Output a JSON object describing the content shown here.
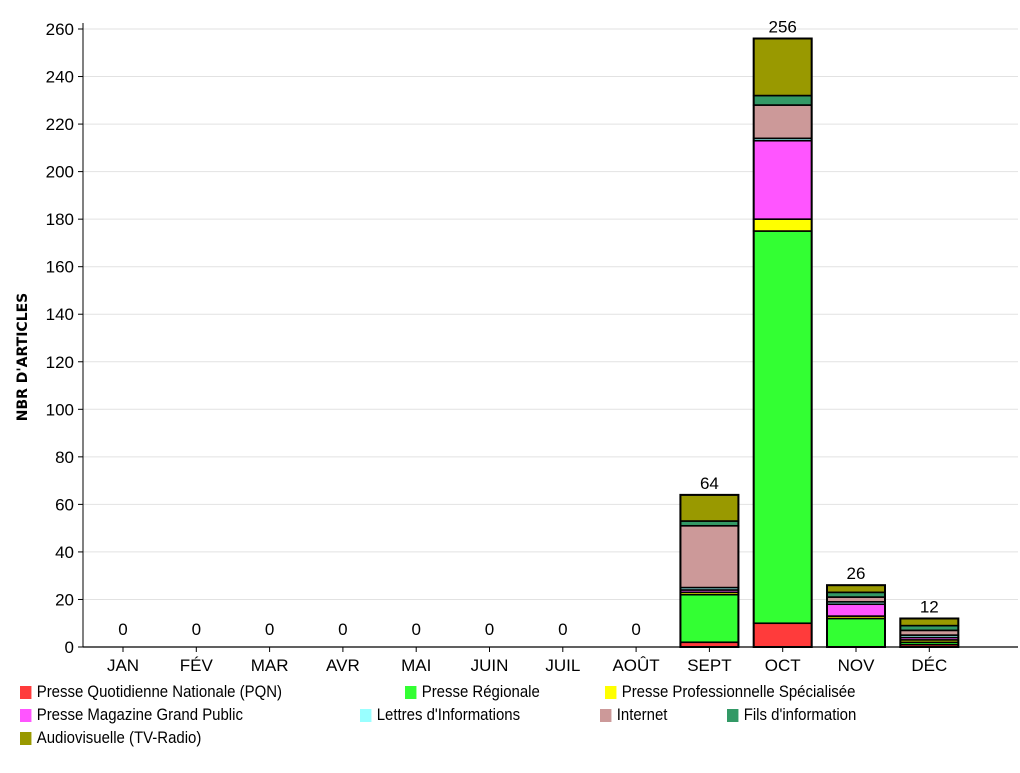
{
  "chart_data": {
    "type": "bar",
    "stacked": true,
    "title": "",
    "xlabel": "",
    "ylabel": "NBR D'ARTICLES",
    "ylim": [
      0,
      260
    ],
    "yticks": [
      0,
      20,
      40,
      60,
      80,
      100,
      120,
      140,
      160,
      180,
      200,
      220,
      240,
      260
    ],
    "grid": true,
    "legend_position": "bottom",
    "categories": [
      "JAN",
      "FÉV",
      "MAR",
      "AVR",
      "MAI",
      "JUIN",
      "JUIL",
      "AOÛT",
      "SEPT",
      "OCT",
      "NOV",
      "DÉC"
    ],
    "totals": [
      0,
      0,
      0,
      0,
      0,
      0,
      0,
      0,
      64,
      256,
      26,
      12
    ],
    "series": [
      {
        "name": "Presse Quotidienne Nationale (PQN)",
        "color": "#ff3b3b",
        "values": [
          0,
          0,
          0,
          0,
          0,
          0,
          0,
          0,
          2,
          10,
          0,
          1
        ]
      },
      {
        "name": "Presse Régionale",
        "color": "#33ff33",
        "values": [
          0,
          0,
          0,
          0,
          0,
          0,
          0,
          0,
          20,
          165,
          12,
          1
        ]
      },
      {
        "name": "Presse Professionnelle Spécialisée",
        "color": "#ffff00",
        "values": [
          0,
          0,
          0,
          0,
          0,
          0,
          0,
          0,
          1,
          5,
          1,
          1
        ]
      },
      {
        "name": "Presse Magazine Grand Public",
        "color": "#ff55ff",
        "values": [
          0,
          0,
          0,
          0,
          0,
          0,
          0,
          0,
          1,
          33,
          5,
          1
        ]
      },
      {
        "name": "Lettres d'Informations",
        "color": "#99ffff",
        "values": [
          0,
          0,
          0,
          0,
          0,
          0,
          0,
          0,
          1,
          1,
          1,
          1
        ]
      },
      {
        "name": "Internet",
        "color": "#cc9999",
        "values": [
          0,
          0,
          0,
          0,
          0,
          0,
          0,
          0,
          26,
          14,
          2,
          2
        ]
      },
      {
        "name": "Fils d'information",
        "color": "#339966",
        "values": [
          0,
          0,
          0,
          0,
          0,
          0,
          0,
          0,
          2,
          4,
          2,
          2
        ]
      },
      {
        "name": "Audiovisuelle (TV-Radio)",
        "color": "#999900",
        "values": [
          0,
          0,
          0,
          0,
          0,
          0,
          0,
          0,
          11,
          24,
          3,
          3
        ]
      }
    ]
  }
}
